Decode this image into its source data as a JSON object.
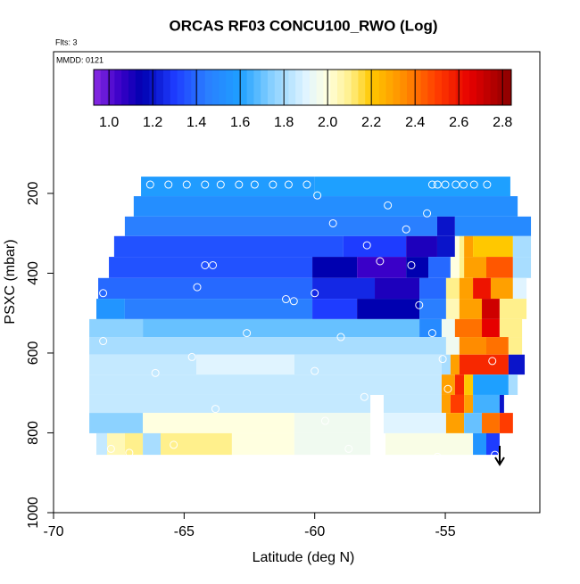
{
  "chart_data": {
    "type": "heatmap",
    "title": "ORCAS RF03 CONCU100_RWO (Log)",
    "flights_note": "Flts: 3",
    "date_note": "MMDD: 0121",
    "x_label": "Latitude (deg N)",
    "y_label": "PSXC (mbar)",
    "xlim": [
      -70,
      -51.38
    ],
    "xticks": [
      -70,
      -65,
      -60,
      -55
    ],
    "ylim": [
      1000,
      -155
    ],
    "yticks": [
      200,
      400,
      600,
      800,
      1000
    ],
    "clim": [
      0.93,
      2.84
    ],
    "cticks": [
      {
        "value": 1,
        "label": "1.0"
      },
      {
        "value": 1.2,
        "label": "1.2"
      },
      {
        "value": 1.4,
        "label": "1.4"
      },
      {
        "value": 1.6,
        "label": "1.6"
      },
      {
        "value": 1.8,
        "label": "1.8"
      },
      {
        "value": 2,
        "label": "2.0"
      },
      {
        "value": 2.2,
        "label": "2.2"
      },
      {
        "value": 2.4,
        "label": "2.4"
      },
      {
        "value": 2.6,
        "label": "2.6"
      },
      {
        "value": 2.8,
        "label": "2.8"
      }
    ],
    "colorscale": [
      [
        0.93,
        "#8a2be2"
      ],
      [
        1.05,
        "#3a00c8"
      ],
      [
        1.15,
        "#0000b0"
      ],
      [
        1.3,
        "#1e3cff"
      ],
      [
        1.45,
        "#2a7fff"
      ],
      [
        1.6,
        "#1ea0ff"
      ],
      [
        1.75,
        "#8cd2ff"
      ],
      [
        1.9,
        "#e0f4ff"
      ],
      [
        2.0,
        "#ffffe0"
      ],
      [
        2.1,
        "#fff08c"
      ],
      [
        2.2,
        "#ffc800"
      ],
      [
        2.35,
        "#ff8c00"
      ],
      [
        2.5,
        "#ff3c00"
      ],
      [
        2.65,
        "#e60000"
      ],
      [
        2.84,
        "#8b0000"
      ]
    ],
    "rows": [
      {
        "p": [
          158,
          207
        ],
        "lat": [
          -66.65,
          -60,
          -52.51
        ],
        "values": [
          1.58,
          1.6
        ]
      },
      {
        "p": [
          207,
          258
        ],
        "lat": [
          -66.93,
          -52.23
        ],
        "values": [
          1.52
        ]
      },
      {
        "p": [
          258,
          307
        ],
        "lat": [
          -67.27,
          -55.31,
          -54.63,
          -51.72
        ],
        "values": [
          1.45,
          1.2,
          1.5
        ]
      },
      {
        "p": [
          307,
          359
        ],
        "lat": [
          -67.68,
          -58.9,
          -56.5,
          -55.31,
          -54.63,
          -54.46,
          -54.28,
          -53.94,
          -52.41,
          -51.72
        ],
        "values": [
          1.35,
          1.3,
          1.1,
          1.2,
          2.0,
          2.1,
          2.3,
          2.2,
          1.8
        ]
      },
      {
        "p": [
          359,
          412
        ],
        "lat": [
          -67.88,
          -60.09,
          -58.38,
          -56.5,
          -55.65,
          -54.8,
          -54.46,
          -54.28,
          -53.43,
          -52.41,
          -51.72
        ],
        "values": [
          1.35,
          1.15,
          1.05,
          1.15,
          1.4,
          2.0,
          2.1,
          2.3,
          2.45,
          1.8
        ]
      },
      {
        "p": [
          412,
          464
        ],
        "lat": [
          -68.29,
          -60.09,
          -57.7,
          -55.99,
          -54.97,
          -54.46,
          -53.94,
          -53.26,
          -52.41,
          -51.89
        ],
        "values": [
          1.4,
          1.25,
          1.1,
          1.4,
          2.1,
          2.3,
          2.6,
          2.3,
          1.9
        ]
      },
      {
        "p": [
          464,
          515
        ],
        "lat": [
          -68.36,
          -67.27,
          -60.09,
          -58.38,
          -55.99,
          -54.97,
          -54.46,
          -53.6,
          -52.92,
          -51.89
        ],
        "values": [
          1.55,
          1.45,
          1.3,
          1.15,
          1.45,
          2.05,
          2.3,
          2.7,
          2.1
        ]
      },
      {
        "p": [
          515,
          560
        ],
        "lat": [
          -68.63,
          -66.58,
          -55.99,
          -55.14,
          -54.63,
          -53.6,
          -52.92,
          -52.06
        ],
        "values": [
          1.75,
          1.7,
          1.5,
          1.95,
          2.4,
          2.65,
          2.1
        ]
      },
      {
        "p": [
          560,
          604
        ],
        "lat": [
          -68.63,
          -54.97,
          -54.46,
          -53.43,
          -52.58,
          -52.06
        ],
        "values": [
          1.8,
          1.95,
          2.35,
          2.4,
          2.1
        ]
      },
      {
        "p": [
          604,
          654
        ],
        "lat": [
          -68.63,
          -64.53,
          -60.78,
          -55.14,
          -54.8,
          -54.46,
          -52.58,
          -51.96
        ],
        "values": [
          1.85,
          1.9,
          1.85,
          1.8,
          2.3,
          2.55,
          1.2
        ]
      },
      {
        "p": [
          654,
          705
        ],
        "lat": [
          -68.63,
          -55.14,
          -54.63,
          -54.28,
          -53.94,
          -52.58,
          -52.23
        ],
        "values": [
          1.85,
          2.3,
          2.55,
          2.2,
          1.6,
          1.8
        ]
      },
      {
        "p": [
          705,
          750
        ],
        "lat": [
          -68.63,
          -57.87,
          -57.36,
          -55.14,
          -54.8,
          -54.28,
          -53.94,
          -52.92,
          -52.75
        ],
        "values": [
          1.85,
          null,
          1.85,
          2.3,
          2.5,
          2.3,
          1.65,
          1.2
        ]
      },
      {
        "p": [
          750,
          801
        ],
        "lat": [
          -68.63,
          -66.58,
          -60.78,
          -57.87,
          -57.36,
          -54.97,
          -54.28,
          -53.6,
          -52.92,
          -52.41
        ],
        "values": [
          1.75,
          2.0,
          1.95,
          null,
          1.9,
          2.3,
          1.7,
          2.4,
          2.5
        ]
      },
      {
        "p": [
          801,
          855
        ],
        "lat": [
          -68.36,
          -67.95,
          -67.27,
          -66.58,
          -65.9,
          -63.17,
          -60.78,
          -57.87,
          -57.29,
          -53.94,
          -53.43,
          -52.92
        ],
        "values": [
          1.85,
          2.05,
          2.1,
          1.8,
          2.1,
          2.0,
          1.95,
          null,
          1.98,
          1.55,
          1.3
        ]
      }
    ],
    "points": {
      "x": [
        -66.3,
        -65.6,
        -64.9,
        -64.2,
        -63.6,
        -62.9,
        -62.3,
        -61.6,
        -61.0,
        -60.3,
        -55.5,
        -55.3,
        -55.0,
        -54.6,
        -54.3,
        -53.9,
        -53.4,
        -59.9,
        -59.3,
        -57.2,
        -55.7,
        -56.5,
        -58.0,
        -64.2,
        -63.9,
        -57.5,
        -56.3,
        -60.0,
        -68.1,
        -64.5,
        -61.1,
        -60.8,
        -56.0,
        -55.5,
        -62.6,
        -59.0,
        -64.7,
        -68.1,
        -66.1,
        -60.0,
        -55.1,
        -54.9,
        -58.1,
        -63.8,
        -59.6,
        -55.3,
        -67.8,
        -67.1,
        -65.4,
        -58.7,
        -53.1,
        -53.2
      ],
      "y": [
        178,
        178,
        178,
        178,
        178,
        178,
        178,
        178,
        178,
        178,
        178,
        178,
        178,
        178,
        178,
        178,
        178,
        205,
        275,
        230,
        250,
        290,
        330,
        380,
        380,
        370,
        380,
        450,
        450,
        435,
        465,
        470,
        480,
        550,
        550,
        560,
        610,
        570,
        650,
        645,
        615,
        690,
        710,
        740,
        770,
        860,
        840,
        850,
        830,
        840,
        855,
        620
      ]
    }
  }
}
